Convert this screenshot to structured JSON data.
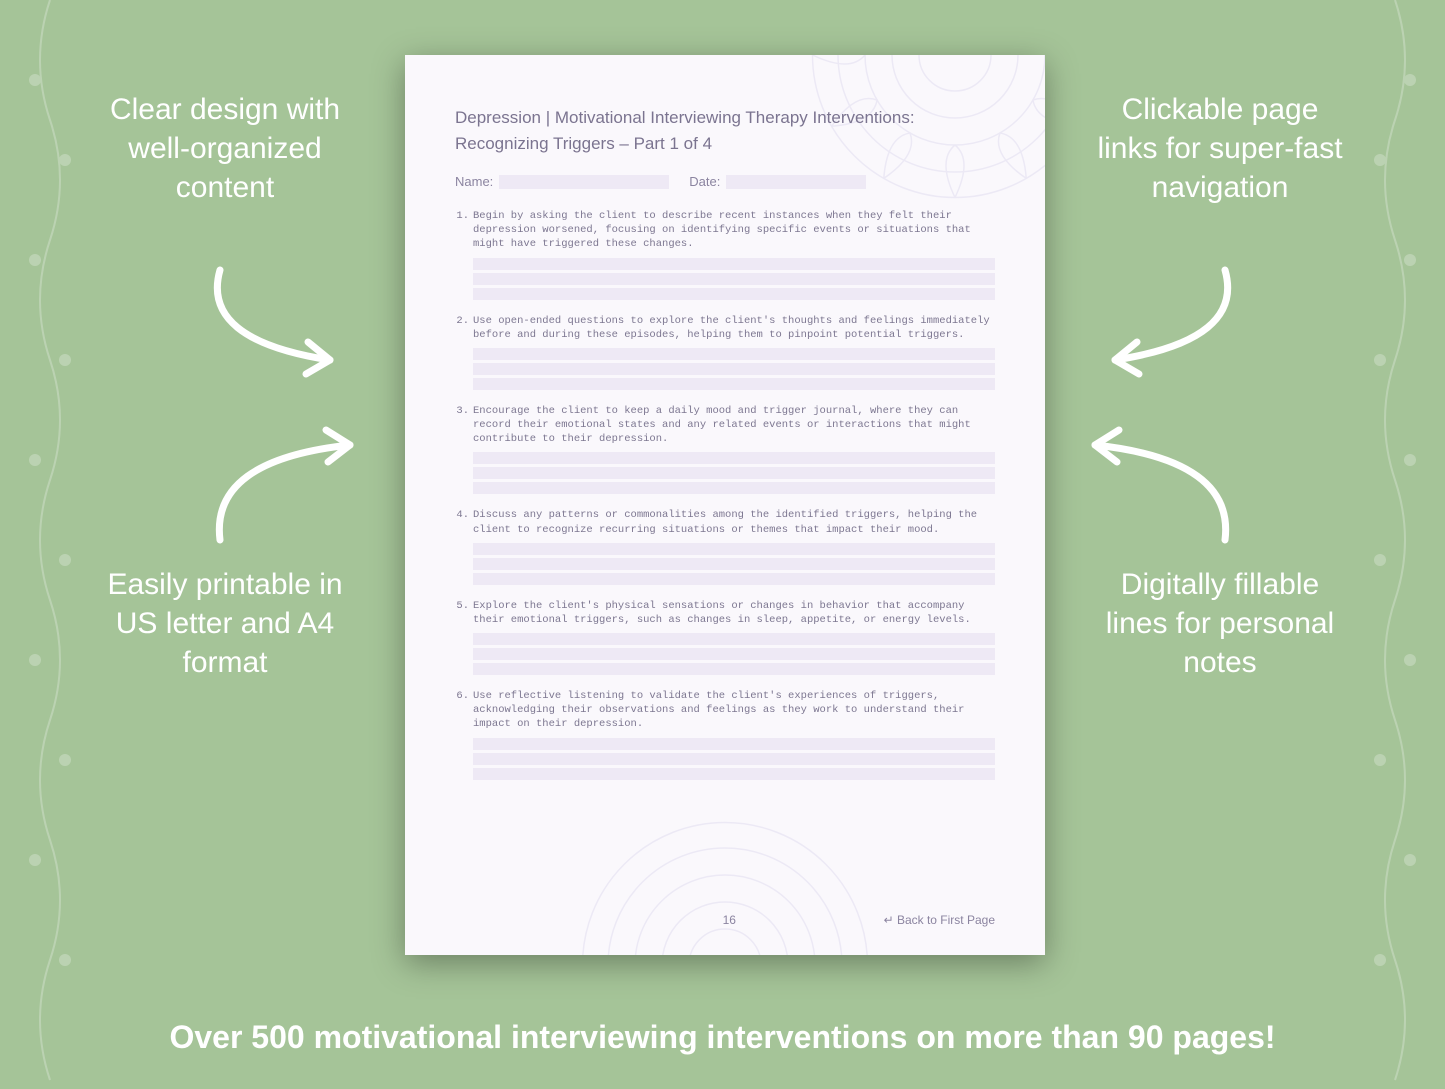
{
  "colors": {
    "background": "#a5c498",
    "callout_text": "#ffffff",
    "arrow": "#ffffff",
    "page_bg": "#faf8fc",
    "page_shadow": "rgba(0,0,0,0.35)",
    "doc_title": "#7b7490",
    "doc_body": "#7d7791",
    "fill_line": "#eee9f5",
    "mandala": "#b0a8d8"
  },
  "callouts": {
    "tl": "Clear design with well-organized content",
    "tr": "Clickable page links for super-fast navigation",
    "bl": "Easily printable in US letter and A4 format",
    "br": "Digitally fillable lines for personal notes"
  },
  "banner": "Over 500 motivational interviewing interventions on more than 90 pages!",
  "document": {
    "title_line1": "Depression | Motivational Interviewing Therapy Interventions:",
    "title_line2": "Recognizing Triggers – Part 1 of 4",
    "name_label": "Name:",
    "date_label": "Date:",
    "items": [
      "Begin by asking the client to describe recent instances when they felt their depression worsened, focusing on identifying specific events or situations that might have triggered these changes.",
      "Use open-ended questions to explore the client's thoughts and feelings immediately before and during these episodes, helping them to pinpoint potential triggers.",
      "Encourage the client to keep a daily mood and trigger journal, where they can record their emotional states and any related events or interactions that might contribute to their depression.",
      "Discuss any patterns or commonalities among the identified triggers, helping the client to recognize recurring situations or themes that impact their mood.",
      "Explore the client's physical sensations or changes in behavior that accompany their emotional triggers, such as changes in sleep, appetite, or energy levels.",
      "Use reflective listening to validate the client's experiences of triggers, acknowledging their observations and feelings as they work to understand their impact on their depression."
    ],
    "page_number": "16",
    "back_link": "↵ Back to First Page"
  }
}
